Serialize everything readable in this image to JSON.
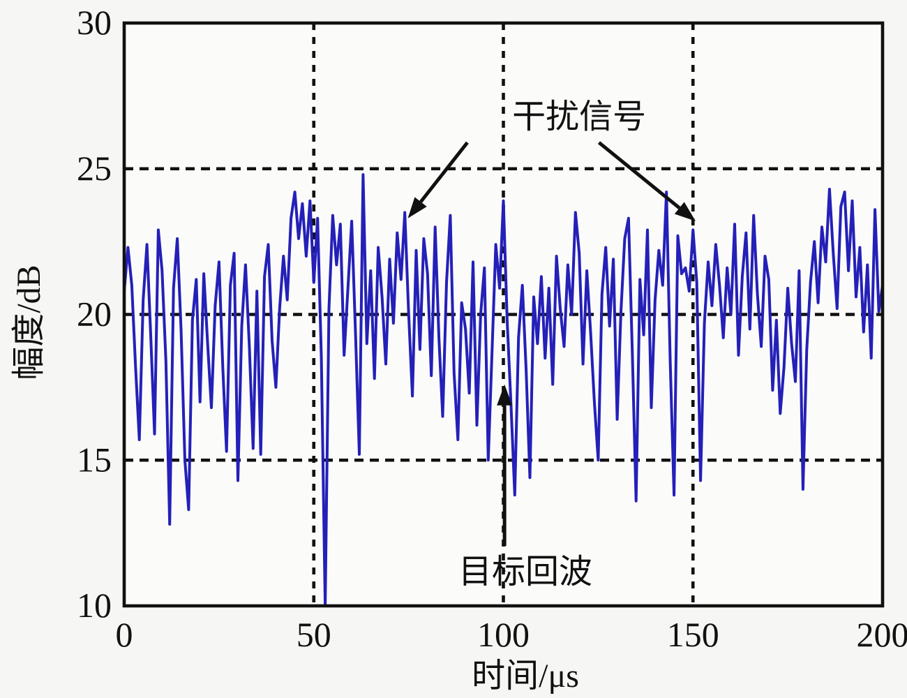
{
  "chart_data": {
    "type": "line",
    "title": "",
    "xlabel": "时间/μs",
    "ylabel": "幅度/dB",
    "xlim": [
      0,
      200
    ],
    "ylim": [
      10,
      30
    ],
    "xticks": [
      "0",
      "50",
      "100",
      "150",
      "200"
    ],
    "xtick_values": [
      0,
      50,
      100,
      150,
      200
    ],
    "yticks": [
      "10",
      "15",
      "20",
      "25",
      "30"
    ],
    "ytick_values": [
      10,
      15,
      20,
      25,
      30
    ],
    "grid": {
      "x_values": [
        50,
        100,
        150
      ],
      "y_values": [
        15,
        20,
        25
      ],
      "style": "dashed",
      "color": "#111111"
    },
    "legend": "none",
    "colors": {
      "signal": "#2420b8",
      "axis": "#111111",
      "annotation": "#111111",
      "page_background": "#f6f6f4",
      "plot_background": "#fbfbfa"
    },
    "series": [
      {
        "name": "received-signal",
        "color": "#2420b8",
        "x_start": 0,
        "x_step": 1,
        "values": [
          20.8,
          22.3,
          21.0,
          18.2,
          15.7,
          20.5,
          22.4,
          19.3,
          15.9,
          22.9,
          21.5,
          18.4,
          12.8,
          20.9,
          22.6,
          19.5,
          15.0,
          13.3,
          19.8,
          21.2,
          17.0,
          21.4,
          19.0,
          16.8,
          20.3,
          21.8,
          18.2,
          15.3,
          21.0,
          22.1,
          14.3,
          19.6,
          21.7,
          18.9,
          15.4,
          20.8,
          15.2,
          21.3,
          22.4,
          19.1,
          17.5,
          20.2,
          22.0,
          20.5,
          23.3,
          24.2,
          22.6,
          23.8,
          22.0,
          23.9,
          21.1,
          23.3,
          18.5,
          10.0,
          20.2,
          23.4,
          21.7,
          23.1,
          18.6,
          20.9,
          23.2,
          19.4,
          15.2,
          24.8,
          19.0,
          21.5,
          17.8,
          22.3,
          20.6,
          18.3,
          21.9,
          19.7,
          22.8,
          21.2,
          23.5,
          20.1,
          17.2,
          22.2,
          18.8,
          22.6,
          21.4,
          17.9,
          23.0,
          19.2,
          16.5,
          21.1,
          23.4,
          18.0,
          15.7,
          20.4,
          19.5,
          17.3,
          21.8,
          16.2,
          20.0,
          21.6,
          15.0,
          18.7,
          22.4,
          20.9,
          23.9,
          19.8,
          16.9,
          13.8,
          19.2,
          21.0,
          18.1,
          14.4,
          20.6,
          19.0,
          21.3,
          18.5,
          20.9,
          17.6,
          22.0,
          20.2,
          18.9,
          21.7,
          20.0,
          23.5,
          22.1,
          18.3,
          21.5,
          19.4,
          17.0,
          15.0,
          20.7,
          22.3,
          19.6,
          21.9,
          16.4,
          20.1,
          22.6,
          23.3,
          18.7,
          13.6,
          21.2,
          19.3,
          22.9,
          16.8,
          20.5,
          22.2,
          21.0,
          24.2,
          18.4,
          13.8,
          22.7,
          21.4,
          21.6,
          20.8,
          22.9,
          21.1,
          14.3,
          19.7,
          21.8,
          20.3,
          22.4,
          21.0,
          19.2,
          21.6,
          20.0,
          23.1,
          18.6,
          21.3,
          22.8,
          19.5,
          23.4,
          20.7,
          18.9,
          22.0,
          21.2,
          17.4,
          19.8,
          16.6,
          18.2,
          20.9,
          19.0,
          17.7,
          21.5,
          14.0,
          18.8,
          21.1,
          22.5,
          20.4,
          23.0,
          21.8,
          24.3,
          22.1,
          20.2,
          23.7,
          24.2,
          21.5,
          23.9,
          20.6,
          22.3,
          19.4,
          21.7,
          18.5,
          23.6,
          20.1,
          21.0
        ]
      }
    ],
    "annotations": [
      {
        "id": "interference-label",
        "text": "干扰信号",
        "x": 120,
        "y": 26.9
      },
      {
        "id": "interference-arrow-left",
        "type": "arrow",
        "from": {
          "x": 90.5,
          "y": 25.9
        },
        "to": {
          "x": 74.8,
          "y": 23.3
        }
      },
      {
        "id": "interference-arrow-right",
        "type": "arrow",
        "from": {
          "x": 125.2,
          "y": 25.9
        },
        "to": {
          "x": 150.7,
          "y": 23.2
        }
      },
      {
        "id": "target-echo-label",
        "text": "目标回波",
        "x": 105.8,
        "y": 11.3
      },
      {
        "id": "target-echo-arrow",
        "type": "arrow",
        "from": {
          "x": 100.3,
          "y": 12.05
        },
        "to": {
          "x": 100.3,
          "y": 17.6
        }
      }
    ]
  }
}
